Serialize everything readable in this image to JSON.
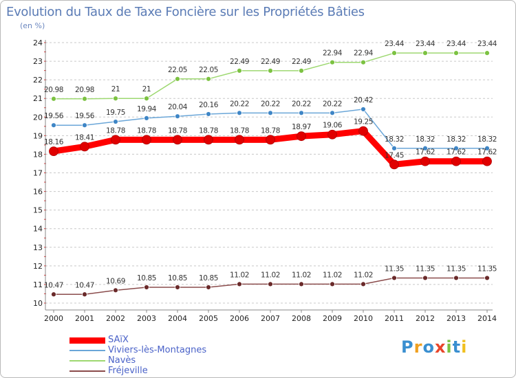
{
  "header": {
    "title": "Evolution du Taux de Taxe Foncière sur les Propriétés Bâties",
    "subtitle": "(en %)"
  },
  "logo": {
    "text": "Proxiti",
    "letter_colors": [
      "#3a8fd0",
      "#f0a020",
      "#3a8fd0",
      "#e8462a",
      "#7cc242",
      "#3a8fd0",
      "#f0c020"
    ]
  },
  "chart_data": {
    "type": "line",
    "title": "Evolution du Taux de Taxe Foncière sur les Propriétés Bâties",
    "subtitle": "(en %)",
    "xlabel": "",
    "ylabel": "(en %)",
    "x": [
      "2000",
      "2001",
      "2002",
      "2003",
      "2004",
      "2005",
      "2006",
      "2007",
      "2008",
      "2009",
      "2010",
      "2011",
      "2012",
      "2013",
      "2014"
    ],
    "ylim": [
      10,
      24
    ],
    "yticks": [
      10,
      11,
      12,
      13,
      14,
      15,
      16,
      17,
      18,
      19,
      20,
      21,
      22,
      23,
      24
    ],
    "grid": "horizontal dashed",
    "legend_position": "bottom-left",
    "series": [
      {
        "name": "SAïX",
        "color": "#ff0000",
        "marker_color": "#e00000",
        "line_width": 9,
        "marker_size": 6.5,
        "values": [
          18.16,
          18.41,
          18.78,
          18.78,
          18.78,
          18.78,
          18.78,
          18.78,
          18.97,
          19.06,
          19.25,
          17.45,
          17.62,
          17.62,
          17.62
        ],
        "labels": [
          "18.16",
          "18.41",
          "18.78",
          "18.78",
          "18.78",
          "18.78",
          "18.78",
          "18.78",
          "18.97",
          "19.06",
          "19.25",
          "17.45",
          "17.62",
          "17.62",
          "17.62"
        ]
      },
      {
        "name": "Viviers-lès-Montagnes",
        "color": "#6aa6d8",
        "marker_color": "#3f86c6",
        "line_width": 1.5,
        "marker_size": 3.5,
        "values": [
          19.56,
          19.56,
          19.75,
          19.94,
          20.04,
          20.16,
          20.22,
          20.22,
          20.22,
          20.22,
          20.42,
          18.32,
          18.32,
          18.32,
          18.32
        ],
        "labels": [
          "19.56",
          "19.56",
          "19.75",
          "19.94",
          "20.04",
          "20.16",
          "20.22",
          "20.22",
          "20.22",
          "20.22",
          "20.42",
          "18.32",
          "18.32",
          "18.32",
          "18.32"
        ]
      },
      {
        "name": "Navès",
        "color": "#9dd870",
        "marker_color": "#7cc242",
        "line_width": 1.5,
        "marker_size": 3.5,
        "values": [
          20.98,
          20.98,
          21,
          21,
          22.05,
          22.05,
          22.49,
          22.49,
          22.49,
          22.94,
          22.94,
          23.44,
          23.44,
          23.44,
          23.44
        ],
        "labels": [
          "20.98",
          "20.98",
          "21",
          "21",
          "22.05",
          "22.05",
          "22.49",
          "22.49",
          "22.49",
          "22.94",
          "22.94",
          "23.44",
          "23.44",
          "23.44",
          "23.44"
        ]
      },
      {
        "name": "Fréjeville",
        "color": "#8a4b4b",
        "marker_color": "#6a2a2a",
        "line_width": 1.5,
        "marker_size": 3.5,
        "values": [
          10.47,
          10.47,
          10.69,
          10.85,
          10.85,
          10.85,
          11.02,
          11.02,
          11.02,
          11.02,
          11.02,
          11.35,
          11.35,
          11.35,
          11.35
        ],
        "labels": [
          "10.47",
          "10.47",
          "10.69",
          "10.85",
          "10.85",
          "10.85",
          "11.02",
          "11.02",
          "11.02",
          "11.02",
          "11.02",
          "11.35",
          "11.35",
          "11.35",
          "11.35"
        ]
      }
    ]
  }
}
